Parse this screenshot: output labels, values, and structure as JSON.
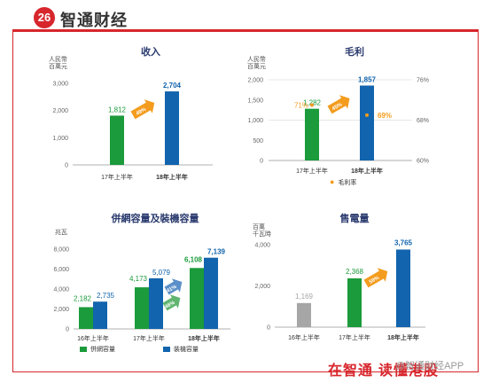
{
  "brand": {
    "logo_badge": "26",
    "name": "智通财经",
    "footer_left": "在智通",
    "footer_right": "读懂港股",
    "watermark": "@智通财经APP"
  },
  "colors": {
    "green": "#1b9b3b",
    "blue": "#1164ad",
    "gray": "#a6a6a6",
    "orange": "#f39c1e",
    "red": "#d7262c"
  },
  "chart_data": [
    {
      "type": "bar",
      "title": "收入",
      "ylabel": "人民幣\n百萬元",
      "categories": [
        "17年上半年",
        "18年上半年"
      ],
      "values": [
        1812,
        2704
      ],
      "value_labels": [
        "1,812",
        "2,704"
      ],
      "bar_colors": [
        "#1b9b3b",
        "#1164ad"
      ],
      "ylim": [
        0,
        3000
      ],
      "yticks": [
        0,
        1000,
        2000,
        3000
      ],
      "ytick_labels": [
        "0",
        "1,000",
        "2,000",
        "3,000"
      ],
      "growth_arrows": [
        {
          "label": "49%"
        }
      ]
    },
    {
      "type": "bar",
      "title": "毛利",
      "ylabel": "人民幣\n百萬元",
      "categories": [
        "17年上半年",
        "18年上半年"
      ],
      "values": [
        1282,
        1857
      ],
      "value_labels": [
        "1,282",
        "1,857"
      ],
      "bar_colors": [
        "#1b9b3b",
        "#1164ad"
      ],
      "ylim": [
        0,
        2000
      ],
      "yticks": [
        0,
        500,
        1000,
        1500,
        2000
      ],
      "ytick_labels": [
        "0",
        "500",
        "1,000",
        "1,500",
        "2,000"
      ],
      "secondary_axis": {
        "ylim": [
          60,
          76
        ],
        "yticks": [
          60,
          68,
          76
        ],
        "ytick_labels": [
          "60%",
          "68%",
          "76%"
        ],
        "series_name": "毛利率",
        "values": [
          71,
          69
        ],
        "value_labels": [
          "71%",
          "69%"
        ]
      },
      "growth_arrows": [
        {
          "label": "45%"
        }
      ]
    },
    {
      "type": "bar",
      "title": "併網容量及裝機容量",
      "ylabel": "兆瓦",
      "categories": [
        "16年上半年",
        "17年上半年",
        "18年上半年"
      ],
      "series": [
        {
          "name": "併網容量",
          "values": [
            2182,
            4173,
            6108
          ],
          "value_labels": [
            "2,182",
            "4,173",
            "6,108"
          ],
          "color": "#1b9b3b"
        },
        {
          "name": "裝機容量",
          "values": [
            2735,
            5079,
            7139
          ],
          "value_labels": [
            "2,735",
            "5,079",
            "7,139"
          ],
          "color": "#1164ad"
        }
      ],
      "ylim": [
        0,
        8000
      ],
      "yticks": [
        0,
        2000,
        4000,
        6000,
        8000
      ],
      "ytick_labels": [
        "0",
        "2,000",
        "4,000",
        "6,000",
        "8,000"
      ],
      "growth_arrows": [
        {
          "label": "41%"
        },
        {
          "label": "46%"
        }
      ]
    },
    {
      "type": "bar",
      "title": "售電量",
      "ylabel": "百萬\n千瓦時",
      "categories": [
        "16年上半年",
        "17年上半年",
        "18年上半年"
      ],
      "values": [
        1169,
        2368,
        3765
      ],
      "value_labels": [
        "1,169",
        "2,368",
        "3,765"
      ],
      "bar_colors": [
        "#a6a6a6",
        "#1b9b3b",
        "#1164ad"
      ],
      "ylim": [
        0,
        4000
      ],
      "yticks": [
        0,
        2000,
        4000
      ],
      "ytick_labels": [
        "0",
        "2,000",
        "4,000"
      ],
      "growth_arrows": [
        {
          "label": "59%"
        }
      ]
    }
  ]
}
